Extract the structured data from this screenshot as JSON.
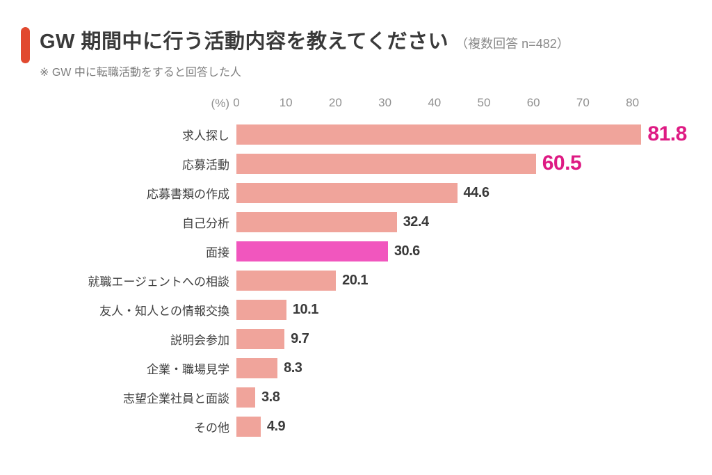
{
  "header": {
    "title": "GW 期間中に行う活動内容を教えてください",
    "title_note": "（複数回答 n=482）",
    "subtitle": "※ GW 中に転職活動をすると回答した人"
  },
  "chart_data": {
    "type": "bar",
    "orientation": "horizontal",
    "title": "GW 期間中に行う活動内容を教えてください",
    "subtitle": "※ GW 中に転職活動をすると回答した人",
    "sample_note": "複数回答 n=482",
    "unit_label": "(%)",
    "axis_ticks": [
      0,
      10,
      20,
      30,
      40,
      50,
      60,
      70,
      80
    ],
    "xlim": [
      0,
      85
    ],
    "grid": false,
    "legend": false,
    "categories": [
      "求人探し",
      "応募活動",
      "応募書類の作成",
      "自己分析",
      "面接",
      "就職エージェントへの相談",
      "友人・知人との情報交換",
      "説明会参加",
      "企業・職場見学",
      "志望企業社員と面談",
      "その他"
    ],
    "values": [
      81.8,
      60.5,
      44.6,
      32.4,
      30.6,
      20.1,
      10.1,
      9.7,
      8.3,
      3.8,
      4.9
    ],
    "highlighted_value_indexes": [
      0,
      1
    ],
    "highlighted_bar_indexes": [
      4
    ]
  },
  "colors": {
    "accent": "#e1492f",
    "bar": "#f0a49b",
    "bar_highlight": "#f156be",
    "value_text": "#3a3a3a",
    "value_text_highlight": "#de1a83",
    "axis_text": "#8f8f8f",
    "title_text": "#3a3a3a",
    "subtitle_text": "#7d7d7d"
  }
}
